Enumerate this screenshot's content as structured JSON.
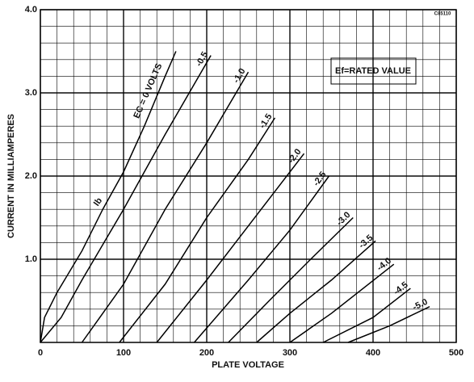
{
  "chart_data": {
    "type": "line",
    "title": "Ef=RATED VALUE",
    "code": "C85110",
    "curve_label": "Ib",
    "x_label": "PLATE VOLTAGE",
    "y_label": "CURRENT IN MILLIAMPERES",
    "color": "#000000",
    "grid": true,
    "xlim": [
      0,
      500
    ],
    "xticks": [
      0,
      100,
      200,
      300,
      400,
      500
    ],
    "ylim": [
      0,
      4.0
    ],
    "yticks": [
      {
        "value": 1,
        "label": "1.0"
      },
      {
        "value": 2,
        "label": "2.0"
      },
      {
        "value": 3,
        "label": "3.0"
      },
      {
        "value": 4,
        "label": "4.0"
      }
    ],
    "series": [
      {
        "name": "EC = 0 VOLTS",
        "x": [
          0,
          5,
          20,
          50,
          75,
          100,
          125,
          150,
          163
        ],
        "values": [
          0,
          0.3,
          0.6,
          1.1,
          1.6,
          2.05,
          2.6,
          3.2,
          3.5
        ]
      },
      {
        "name": "-0.5",
        "x": [
          0,
          25,
          50,
          100,
          150,
          205
        ],
        "values": [
          0,
          0.3,
          0.75,
          1.6,
          2.5,
          3.45
        ]
      },
      {
        "name": "-1.0",
        "x": [
          50,
          100,
          150,
          200,
          250
        ],
        "values": [
          0,
          0.7,
          1.6,
          2.4,
          3.25
        ]
      },
      {
        "name": "-1.5",
        "x": [
          95,
          150,
          200,
          250,
          282
        ],
        "values": [
          0,
          0.7,
          1.5,
          2.2,
          2.7
        ]
      },
      {
        "name": "-2.0",
        "x": [
          140,
          200,
          250,
          317
        ],
        "values": [
          0,
          0.75,
          1.4,
          2.27
        ]
      },
      {
        "name": "-2.5",
        "x": [
          185,
          250,
          300,
          347
        ],
        "values": [
          0,
          0.75,
          1.35,
          2.0
        ]
      },
      {
        "name": "-3.0",
        "x": [
          226,
          275,
          325,
          376
        ],
        "values": [
          0,
          0.5,
          1.0,
          1.5
        ]
      },
      {
        "name": "-3.5",
        "x": [
          260,
          300,
          350,
          403
        ],
        "values": [
          0,
          0.35,
          0.75,
          1.22
        ]
      },
      {
        "name": "-4.0",
        "x": [
          300,
          350,
          425
        ],
        "values": [
          0,
          0.35,
          0.94
        ]
      },
      {
        "name": "-4.5",
        "x": [
          340,
          400,
          445
        ],
        "values": [
          0,
          0.3,
          0.65
        ]
      },
      {
        "name": "-5.0",
        "x": [
          370,
          420,
          468
        ],
        "values": [
          0,
          0.2,
          0.43
        ]
      }
    ]
  }
}
